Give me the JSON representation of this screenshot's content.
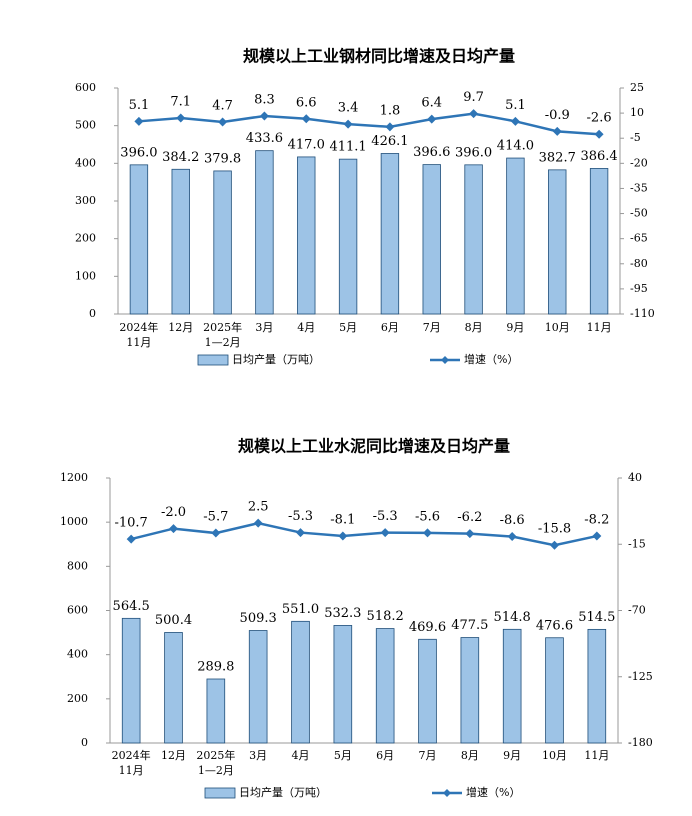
{
  "chart_data": [
    {
      "type": "bar",
      "title": "规模以上工业钢材同比增速及日均产量",
      "categories": [
        "2024年\n11月",
        "12月",
        "2025年\n1—2月",
        "3月",
        "4月",
        "5月",
        "6月",
        "7月",
        "8月",
        "9月",
        "10月",
        "11月"
      ],
      "series": [
        {
          "name": "日均产量（万吨）",
          "type": "bar",
          "color": "#9dc3e6",
          "values": [
            396.0,
            384.2,
            379.8,
            433.6,
            417.0,
            411.1,
            426.1,
            396.6,
            396.0,
            414.0,
            382.7,
            386.4
          ],
          "value_labels": [
            "396.0",
            "384.2",
            "379.8",
            "433.6",
            "417.0",
            "411.1",
            "426.1",
            "396.6",
            "396.0",
            "414.0",
            "382.7",
            "386.4"
          ]
        },
        {
          "name": "增速（%）",
          "type": "line",
          "axis": "y2",
          "color": "#2e75b6",
          "values": [
            5.1,
            7.1,
            4.7,
            8.3,
            6.6,
            3.4,
            1.8,
            6.4,
            9.7,
            5.1,
            -0.9,
            -2.6
          ]
        }
      ],
      "ylim": [
        0,
        600
      ],
      "yticks": [
        0,
        100,
        200,
        300,
        400,
        500,
        600
      ],
      "y2lim": [
        -110,
        25
      ],
      "y2ticks": [
        -110,
        -95,
        -80,
        -65,
        -50,
        -35,
        -20,
        -5,
        10,
        25
      ]
    },
    {
      "type": "bar",
      "title": "规模以上工业水泥同比增速及日均产量",
      "categories": [
        "2024年\n11月",
        "12月",
        "2025年\n1—2月",
        "3月",
        "4月",
        "5月",
        "6月",
        "7月",
        "8月",
        "9月",
        "10月",
        "11月"
      ],
      "series": [
        {
          "name": "日均产量（万吨）",
          "type": "bar",
          "color": "#9dc3e6",
          "values": [
            564.5,
            500.4,
            289.8,
            509.3,
            551.0,
            532.3,
            518.2,
            469.6,
            477.5,
            514.8,
            476.6,
            514.5
          ],
          "value_labels": [
            "564.5",
            "500.4",
            "289.8",
            "509.3",
            "551.0",
            "532.3",
            "518.2",
            "469.6",
            "477.5",
            "514.8",
            "476.6",
            "514.5"
          ]
        },
        {
          "name": "增速（%）",
          "type": "line",
          "axis": "y2",
          "color": "#2e75b6",
          "values": [
            -10.7,
            -2.0,
            -5.7,
            2.5,
            -5.3,
            -8.1,
            -5.3,
            -5.6,
            -6.2,
            -8.6,
            -15.8,
            -8.2
          ],
          "value_labels": [
            "-10.7",
            "-2.0",
            "-5.7",
            "2.5",
            "-5.3",
            "-8.1",
            "-5.3",
            "-5.6",
            "-6.2",
            "-8.6",
            "-15.8",
            "-8.2"
          ]
        }
      ],
      "ylim": [
        0,
        1200
      ],
      "yticks": [
        0,
        200,
        400,
        600,
        800,
        1000,
        1200
      ],
      "y2lim": [
        -180,
        40
      ],
      "y2ticks": [
        -180,
        -125,
        -70,
        -15,
        40
      ]
    }
  ]
}
